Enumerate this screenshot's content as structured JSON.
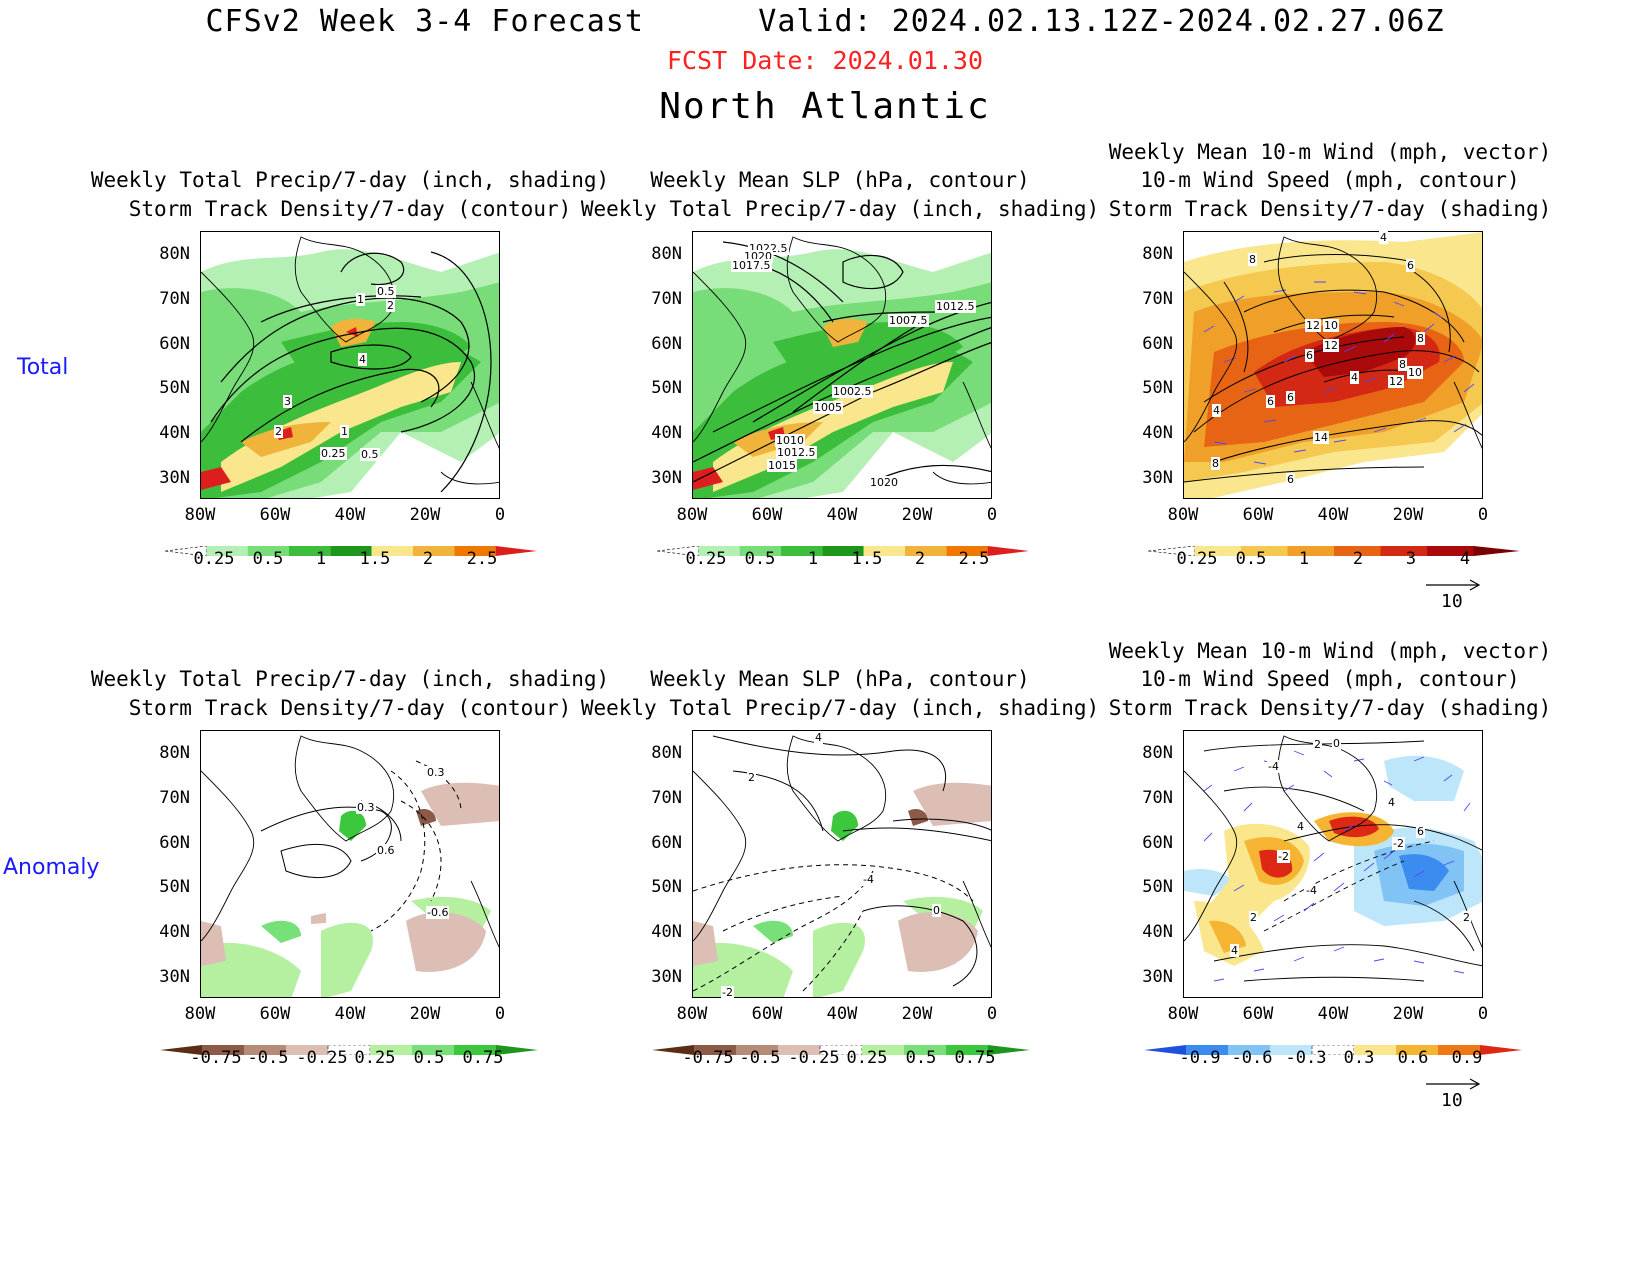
{
  "header": {
    "title": "CFSv2 Week 3-4 Forecast      Valid: 2024.02.13.12Z-2024.02.27.06Z",
    "fcst_date": "FCST Date: 2024.01.30",
    "region": "North Atlantic"
  },
  "rows": {
    "total": "Total",
    "anomaly": "Anomaly"
  },
  "panels": {
    "p1": {
      "t1": "Weekly Total Precip/7-day (inch, shading)",
      "t2": "Storm Track Density/7-day (contour)"
    },
    "p2": {
      "t1": "Weekly Mean SLP (hPa, contour)",
      "t2": "Weekly Total Precip/7-day (inch, shading)"
    },
    "p3": {
      "t0": "Weekly Mean 10-m Wind (mph, vector)",
      "t1": "10-m Wind Speed (mph, contour)",
      "t2": "Storm Track Density/7-day (shading)"
    },
    "p4": {
      "t1": "Weekly Total Precip/7-day (inch, shading)",
      "t2": "Storm Track Density/7-day (contour)"
    },
    "p5": {
      "t1": "Weekly Mean SLP (hPa, contour)",
      "t2": "Weekly Total Precip/7-day (inch, shading)"
    },
    "p6": {
      "t0": "Weekly Mean 10-m Wind (mph, vector)",
      "t1": "10-m Wind Speed (mph, contour)",
      "t2": "Storm Track Density/7-day (shading)"
    }
  },
  "axes": {
    "lat": [
      "80N",
      "70N",
      "60N",
      "50N",
      "40N",
      "30N"
    ],
    "lon": [
      "80W",
      "60W",
      "40W",
      "20W",
      "0"
    ]
  },
  "colorbars": {
    "precip_total": {
      "labels": [
        "0.25",
        "0.5",
        "1",
        "1.5",
        "2",
        "2.5"
      ],
      "colors": [
        "#ffffff",
        "#b4f0b4",
        "#78dc78",
        "#3cbe3c",
        "#1e961e",
        "#fae68c",
        "#f0b43c",
        "#f07800",
        "#dc1e1e"
      ]
    },
    "storm_total": {
      "labels": [
        "0.25",
        "0.5",
        "1",
        "2",
        "3",
        "4"
      ],
      "colors": [
        "#ffffff",
        "#fae68c",
        "#f5c850",
        "#f0a028",
        "#e66414",
        "#d22814",
        "#aa0a0a",
        "#780000"
      ]
    },
    "precip_anom": {
      "labels": [
        "-0.75",
        "-0.5",
        "-0.25",
        "0.25",
        "0.5",
        "0.75"
      ],
      "colors": [
        "#5a2d14",
        "#8c5a46",
        "#b48c78",
        "#dcbeb4",
        "#ffffff",
        "#b4f0a0",
        "#78e078",
        "#3cc83c",
        "#1e961e"
      ]
    },
    "storm_anom": {
      "labels": [
        "-0.9",
        "-0.6",
        "-0.3",
        "0.3",
        "0.6",
        "0.9"
      ],
      "colors": [
        "#1e50dc",
        "#3c8cf0",
        "#82c3f5",
        "#bee6fa",
        "#ffffff",
        "#fae68c",
        "#f5b432",
        "#f07814",
        "#dc2814"
      ]
    }
  },
  "contour_labels": {
    "p1": [
      "0.5",
      "1",
      "2",
      "4",
      "3",
      "2",
      "1",
      "0.25",
      "0.5"
    ],
    "p2": [
      "1022.5",
      "1020",
      "1017.5",
      "1012.5",
      "1007.5",
      "1002.5",
      "1005",
      "1010",
      "1012.5",
      "1015",
      "1020"
    ],
    "p3": [
      "4",
      "8",
      "6",
      "12",
      "10",
      "12",
      "6",
      "8",
      "8",
      "4",
      "10",
      "12",
      "6",
      "6",
      "4",
      "8",
      "14",
      "6"
    ],
    "p4": [
      "0.3",
      "0.3",
      "0.6",
      "-0.6"
    ],
    "p5": [
      "4",
      "2",
      "-4",
      "0",
      "-2"
    ],
    "p6": [
      "2",
      "0",
      "-4",
      "4",
      "6",
      "-2",
      "-2",
      "-4",
      "2",
      "4",
      "2",
      "4"
    ]
  },
  "vector_ref": "10",
  "map_features": [
    "greenland-coast",
    "north-america-coast",
    "europe-coast",
    "africa-coast"
  ]
}
